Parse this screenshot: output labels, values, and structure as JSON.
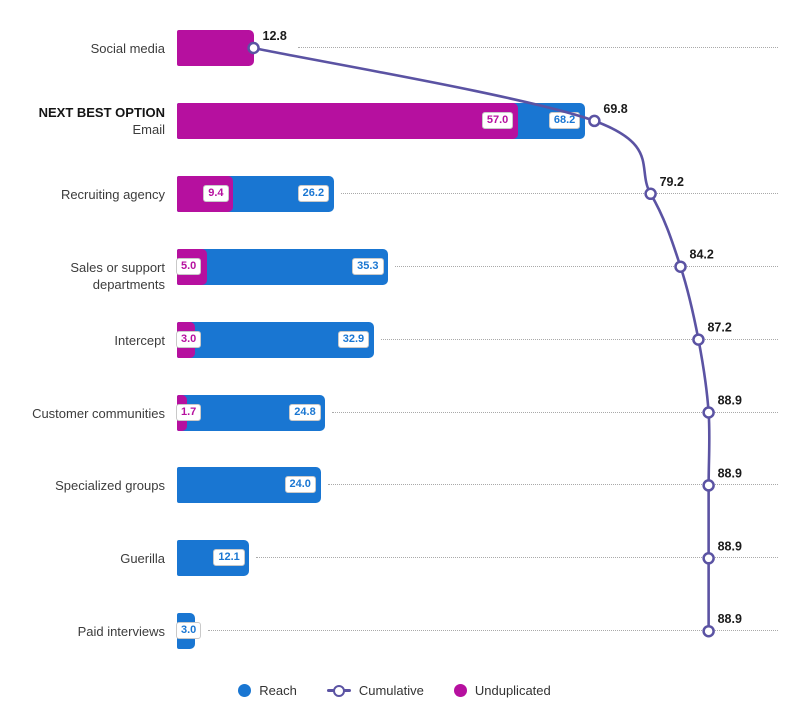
{
  "chart_data": {
    "type": "bar",
    "orientation": "horizontal",
    "title": "",
    "xlabel": "",
    "ylabel": "",
    "xlim": [
      0,
      100
    ],
    "grid": "dotted-row-leaders",
    "legend_position": "bottom-center",
    "colors": {
      "reach": "#1976d2",
      "unduplicated": "#b6109f",
      "cumulative": "#5b53a3",
      "leader_dots": "#a9a9a9",
      "marker_fill": "#ffffff",
      "value_label_text_dark": "#1b1b1b",
      "category_text": "#3c3c3c",
      "badge_border": "#c9c9c9"
    },
    "categories": [
      "Social media",
      "Email",
      "Recruiting agency",
      "Sales or support departments",
      "Intercept",
      "Customer communities",
      "Specialized groups",
      "Guerilla",
      "Paid interviews"
    ],
    "highlight": {
      "category_index": 1,
      "label": "NEXT BEST OPTION"
    },
    "series": [
      {
        "name": "Reach",
        "values": [
          null,
          68.2,
          26.2,
          35.3,
          32.9,
          24.8,
          24.0,
          12.1,
          3.0
        ]
      },
      {
        "name": "Unduplicated",
        "values": [
          12.8,
          57.0,
          9.4,
          5.0,
          3.0,
          1.7,
          null,
          null,
          null
        ]
      },
      {
        "name": "Cumulative",
        "values": [
          12.8,
          69.8,
          79.2,
          84.2,
          87.2,
          88.9,
          88.9,
          88.9,
          88.9
        ]
      }
    ],
    "rows": [
      {
        "category": "Social media",
        "prefix": null,
        "reach": null,
        "reach_label": null,
        "unduplicated": 12.8,
        "unduplicated_label": null,
        "cumulative": 12.8,
        "cumulative_label": "12.8",
        "leader": true
      },
      {
        "category": "Email",
        "prefix": "NEXT BEST OPTION",
        "reach": 68.2,
        "reach_label": "68.2",
        "unduplicated": 57.0,
        "unduplicated_label": "57.0",
        "cumulative": 69.8,
        "cumulative_label": "69.8",
        "leader": false
      },
      {
        "category": "Recruiting agency",
        "prefix": null,
        "reach": 26.2,
        "reach_label": "26.2",
        "unduplicated": 9.4,
        "unduplicated_label": "9.4",
        "cumulative": 79.2,
        "cumulative_label": "79.2",
        "leader": true
      },
      {
        "category": "Sales or support departments",
        "prefix": null,
        "reach": 35.3,
        "reach_label": "35.3",
        "unduplicated": 5.0,
        "unduplicated_label": "5.0",
        "cumulative": 84.2,
        "cumulative_label": "84.2",
        "leader": true
      },
      {
        "category": "Intercept",
        "prefix": null,
        "reach": 32.9,
        "reach_label": "32.9",
        "unduplicated": 3.0,
        "unduplicated_label": "3.0",
        "cumulative": 87.2,
        "cumulative_label": "87.2",
        "leader": true
      },
      {
        "category": "Customer communities",
        "prefix": null,
        "reach": 24.8,
        "reach_label": "24.8",
        "unduplicated": 1.7,
        "unduplicated_label": "1.7",
        "cumulative": 88.9,
        "cumulative_label": "88.9",
        "leader": true
      },
      {
        "category": "Specialized groups",
        "prefix": null,
        "reach": 24.0,
        "reach_label": "24.0",
        "unduplicated": null,
        "unduplicated_label": null,
        "cumulative": 88.9,
        "cumulative_label": "88.9",
        "leader": true
      },
      {
        "category": "Guerilla",
        "prefix": null,
        "reach": 12.1,
        "reach_label": "12.1",
        "unduplicated": null,
        "unduplicated_label": null,
        "cumulative": 88.9,
        "cumulative_label": "88.9",
        "leader": true
      },
      {
        "category": "Paid interviews",
        "prefix": null,
        "reach": 3.0,
        "reach_label": "3.0",
        "unduplicated": null,
        "unduplicated_label": null,
        "cumulative": 88.9,
        "cumulative_label": "88.9",
        "leader": true
      }
    ]
  },
  "legend": {
    "items": [
      {
        "label": "Reach",
        "swatch": "dot",
        "color": "#1976d2"
      },
      {
        "label": "Cumulative",
        "swatch": "line-circle",
        "color": "#5b53a3"
      },
      {
        "label": "Unduplicated",
        "swatch": "dot",
        "color": "#b6109f"
      }
    ]
  }
}
